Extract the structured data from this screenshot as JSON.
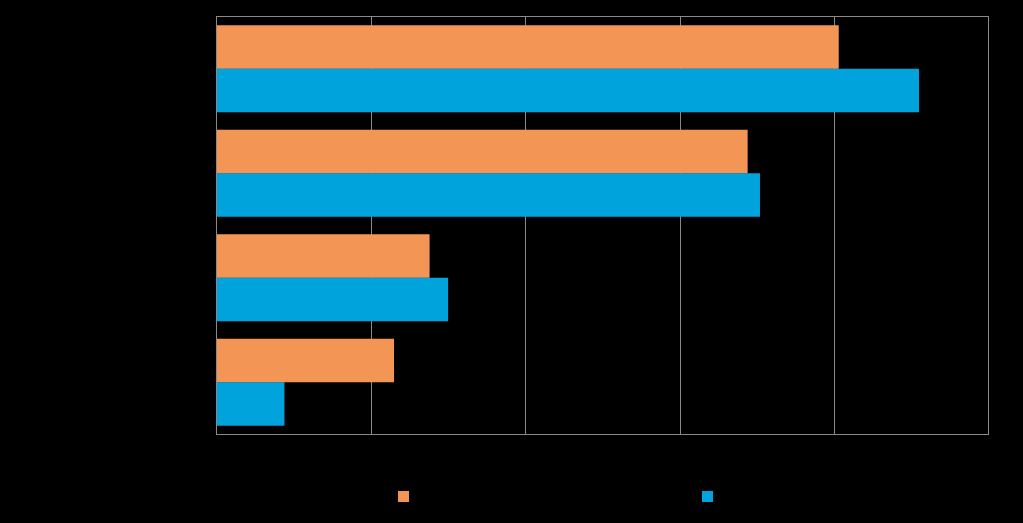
{
  "chart_data": {
    "type": "bar",
    "orientation": "horizontal",
    "title": "",
    "xlabel": "",
    "ylabel": "",
    "categories": [
      "",
      "",
      "",
      ""
    ],
    "xlim": [
      0,
      5
    ],
    "x_gridlines": [
      1,
      2,
      3,
      4
    ],
    "grid": true,
    "series": [
      {
        "color": "#f39554",
        "values": [
          4.03,
          3.44,
          1.38,
          1.15
        ]
      },
      {
        "color": "#00a3dc",
        "values": [
          4.55,
          3.52,
          1.5,
          0.44
        ]
      }
    ],
    "legend": {
      "placement": "bottom"
    }
  }
}
